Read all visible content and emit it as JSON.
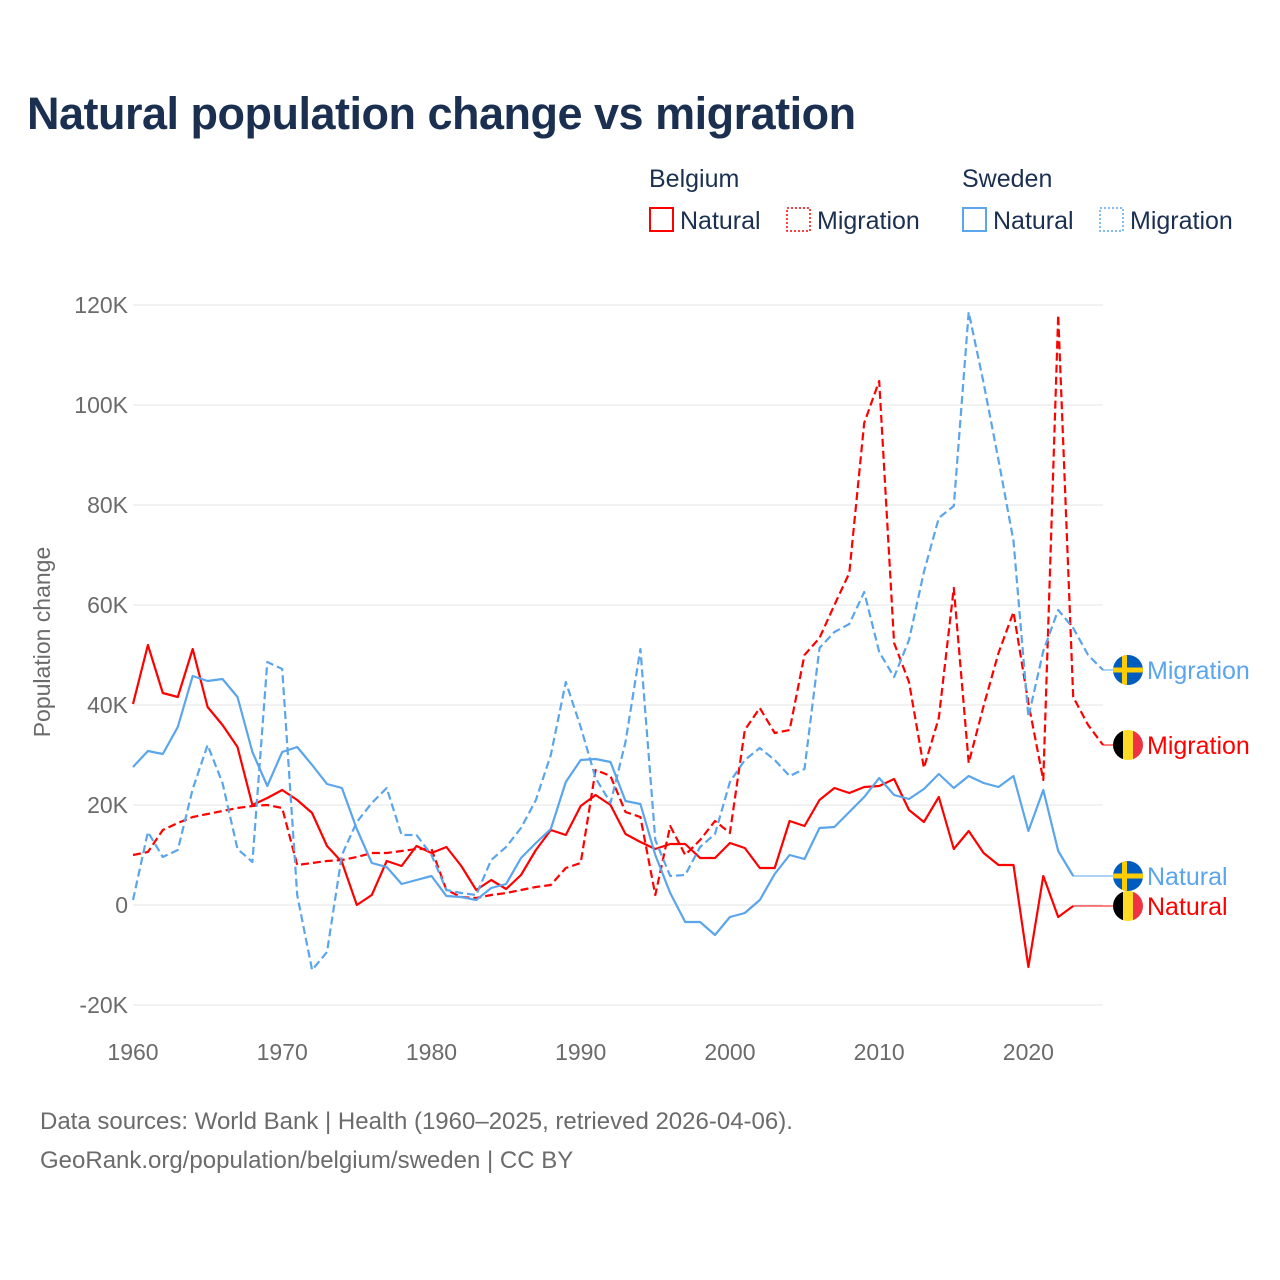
{
  "chart_data": {
    "type": "line",
    "title": "Natural population change vs migration",
    "xlabel": "",
    "ylabel": "Population change",
    "xlim": [
      1960,
      2025
    ],
    "ylim": [
      -20000,
      120000
    ],
    "x_ticks": [
      "1960",
      "1970",
      "1980",
      "1990",
      "2000",
      "2010",
      "2020"
    ],
    "y_ticks": [
      {
        "value": -20000,
        "label": "-20K"
      },
      {
        "value": 0,
        "label": "0"
      },
      {
        "value": 20000,
        "label": "20K"
      },
      {
        "value": 40000,
        "label": "40K"
      },
      {
        "value": 60000,
        "label": "60K"
      },
      {
        "value": 80000,
        "label": "80K"
      },
      {
        "value": 100000,
        "label": "100K"
      },
      {
        "value": 120000,
        "label": "120K"
      }
    ],
    "grid": true,
    "legend": {
      "placement": "top-right",
      "groups": [
        {
          "name": "Belgium",
          "items": [
            "Natural",
            "Migration"
          ]
        },
        {
          "name": "Sweden",
          "items": [
            "Natural",
            "Migration"
          ]
        }
      ]
    },
    "series": [
      {
        "id": "be-natural",
        "country": "Belgium",
        "name": "Natural",
        "color": "#ff0000",
        "dashed": false,
        "start_year": 1960,
        "values_k": [
          40.2,
          52,
          42.4,
          41.6,
          51.2,
          39.6,
          36,
          31.6,
          20,
          21.4,
          23,
          21,
          18.4,
          11.8,
          8.6,
          0,
          2,
          8.8,
          7.8,
          11.8,
          10.4,
          11.6,
          7.8,
          3,
          5,
          3.2,
          6,
          11,
          15,
          14,
          19.8,
          22,
          20,
          14.2,
          12.6,
          11.2,
          12.2,
          12.2,
          9.4,
          9.4,
          12.4,
          11.4,
          7.4,
          7.4,
          16.8,
          15.8,
          21,
          23.4,
          22.4,
          23.6,
          23.8,
          25.2,
          19,
          16.6,
          21.6,
          11.2,
          14.8,
          10.4,
          8,
          8,
          -12.4,
          5.8,
          -2.4,
          -0.2
        ]
      },
      {
        "id": "be-migration",
        "country": "Belgium",
        "name": "Migration",
        "color": "#ff0000",
        "dashed": true,
        "start_year": 1960,
        "values_k": [
          10,
          10.6,
          15,
          16.4,
          17.6,
          18.2,
          18.8,
          19.4,
          19.8,
          20,
          19.4,
          8,
          8.4,
          8.8,
          9,
          9.6,
          10.4,
          10.4,
          10.8,
          11.2,
          11.2,
          3,
          1.6,
          1.4,
          2,
          2.4,
          3,
          3.6,
          4,
          7.4,
          8.4,
          27,
          25.8,
          18.6,
          17.6,
          2,
          15.8,
          10,
          13,
          16.8,
          14.4,
          35,
          39.4,
          34.4,
          35,
          50,
          53.4,
          60,
          66.4,
          96.4,
          104.8,
          52.4,
          44.6,
          27.4,
          37.4,
          63.4,
          28.4,
          39.8,
          50.4,
          58.6,
          40.4,
          25,
          118,
          41.6,
          36,
          32
        ]
      },
      {
        "id": "se-natural",
        "country": "Sweden",
        "name": "Natural",
        "color": "#5aa5eb",
        "dashed": false,
        "start_year": 1960,
        "values_k": [
          27.6,
          30.8,
          30.2,
          35.6,
          45.8,
          44.8,
          45.2,
          41.6,
          30.6,
          23.8,
          30.6,
          31.6,
          28,
          24.2,
          23.4,
          15.2,
          8.4,
          7.6,
          4.2,
          5,
          5.8,
          1.8,
          1.6,
          1,
          3.4,
          4.2,
          9.4,
          12.4,
          15.2,
          24.6,
          29,
          29.2,
          28.6,
          20.8,
          20.2,
          10,
          2.4,
          -3.4,
          -3.4,
          -6,
          -2.4,
          -1.6,
          1,
          6.2,
          10,
          9.2,
          15.4,
          15.6,
          18.6,
          21.6,
          25.4,
          22,
          21.2,
          23.2,
          26.2,
          23.4,
          25.8,
          24.4,
          23.6,
          25.8,
          14.8,
          23,
          10.8,
          5.8
        ]
      },
      {
        "id": "se-migration",
        "country": "Sweden",
        "name": "Migration",
        "color": "#5aa5eb",
        "dashed": true,
        "start_year": 1960,
        "values_k": [
          1,
          14.6,
          9.6,
          11,
          23.2,
          32,
          24.4,
          11.2,
          8.6,
          48.6,
          47.2,
          2,
          -13,
          -9.4,
          10,
          16.6,
          20.4,
          23.4,
          14,
          14,
          10,
          3,
          2.4,
          2,
          9,
          11.6,
          15.4,
          21,
          30,
          44.6,
          35.6,
          25.4,
          20.4,
          32.6,
          51.2,
          13,
          5.8,
          6,
          11.6,
          14.2,
          24.6,
          29,
          31.4,
          29,
          25.8,
          27.2,
          51.4,
          54.6,
          56.2,
          62.6,
          50.6,
          45.6,
          53,
          66.6,
          77.4,
          79.8,
          118.6,
          104.4,
          89,
          72.8,
          37.6,
          50.8,
          59,
          55.4,
          50,
          47
        ]
      }
    ],
    "end_labels": [
      {
        "series": "se-migration",
        "label": "Migration",
        "flag": "sweden"
      },
      {
        "series": "be-migration",
        "label": "Migration",
        "flag": "belgium"
      },
      {
        "series": "se-natural",
        "label": "Natural",
        "flag": "sweden"
      },
      {
        "series": "be-natural",
        "label": "Natural",
        "flag": "belgium"
      }
    ]
  },
  "footer": {
    "line1": "Data sources: World Bank | Health (1960–2025, retrieved 2026-04-06).",
    "line2": "GeoRank.org/population/belgium/sweden | CC BY"
  }
}
